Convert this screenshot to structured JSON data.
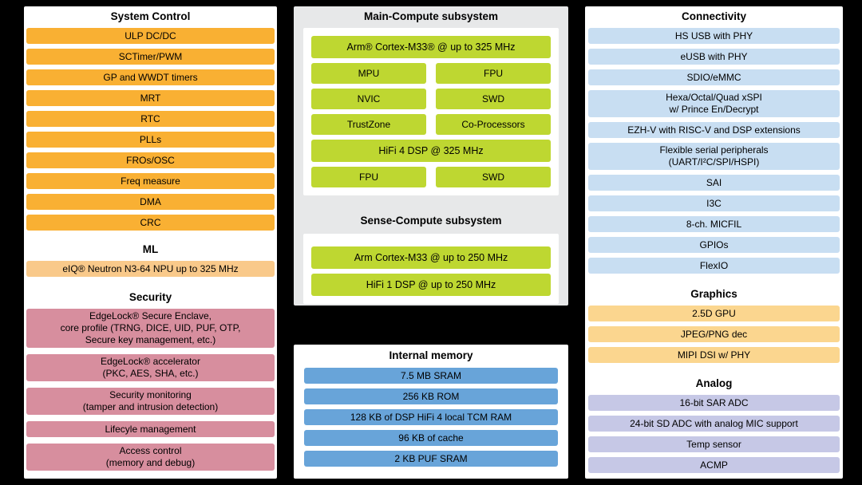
{
  "colors": {
    "bg": "#000000",
    "panel": "#ffffff",
    "panel_gray": "#e7e8e9",
    "orange": "#f9b033",
    "orange_light": "#f9c98a",
    "pink": "#d78e9e",
    "green": "#bed731",
    "blue": "#68a4d9",
    "light_blue": "#c8def2",
    "peach": "#fbd68f",
    "lavender": "#c6c8e6"
  },
  "left": {
    "system_control": {
      "title": "System Control",
      "items": [
        "ULP DC/DC",
        "SCTimer/PWM",
        "GP and WWDT timers",
        "MRT",
        "RTC",
        "PLLs",
        "FROs/OSC",
        "Freq measure",
        "DMA",
        "CRC"
      ]
    },
    "ml": {
      "title": "ML",
      "items": [
        "eIQ® Neutron N3-64 NPU up to 325 MHz"
      ]
    },
    "security": {
      "title": "Security",
      "items": [
        "EdgeLock® Secure Enclave,\ncore profile (TRNG, DICE, UID, PUF, OTP,\nSecure key management, etc.)",
        "EdgeLock® accelerator\n(PKC, AES, SHA, etc.)",
        "Security monitoring\n(tamper and intrusion detection)",
        "Lifecyle management",
        "Access control\n(memory and debug)"
      ]
    }
  },
  "middle": {
    "main_compute": {
      "title": "Main-Compute subsystem",
      "cpu": "Arm® Cortex-M33® @ up to 325 MHz",
      "grid": [
        "MPU",
        "FPU",
        "NVIC",
        "SWD",
        "TrustZone",
        "Co-Processors"
      ],
      "dsp": "HiFi 4 DSP @ 325 MHz",
      "dsp_grid": [
        "FPU",
        "SWD"
      ]
    },
    "sense_compute": {
      "title": "Sense-Compute subsystem",
      "items": [
        "Arm Cortex-M33 @ up to 250 MHz",
        "HiFi 1 DSP @ up to 250 MHz"
      ]
    },
    "memory": {
      "title": "Internal memory",
      "items": [
        "7.5 MB SRAM",
        "256 KB ROM",
        "128 KB of DSP HiFi 4 local TCM RAM",
        "96 KB of cache",
        "2 KB PUF SRAM"
      ]
    }
  },
  "right": {
    "connectivity": {
      "title": "Connectivity",
      "items": [
        "HS USB with PHY",
        "eUSB with PHY",
        "SDIO/eMMC",
        "Hexa/Octal/Quad xSPI\nw/ Prince En/Decrypt",
        "EZH-V with RISC-V and DSP extensions",
        "Flexible serial peripherals\n(UART/I²C/SPI/HSPI)",
        "SAI",
        "I3C",
        "8-ch. MICFIL",
        "GPIOs",
        "FlexIO"
      ]
    },
    "graphics": {
      "title": "Graphics",
      "items": [
        "2.5D GPU",
        "JPEG/PNG dec",
        "MIPI DSI w/ PHY"
      ]
    },
    "analog": {
      "title": "Analog",
      "items": [
        "16-bit SAR ADC",
        "24-bit SD ADC with analog MIC support",
        "Temp sensor",
        "ACMP"
      ]
    }
  }
}
